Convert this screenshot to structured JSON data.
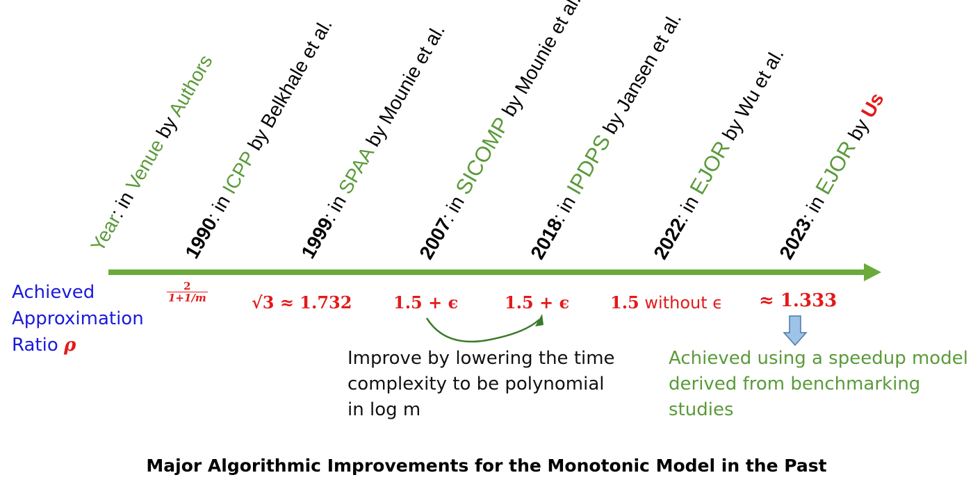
{
  "legend_entry": {
    "year": "Year",
    "sep": ": in ",
    "venue": "Venue",
    "by": " by ",
    "authors": "Authors"
  },
  "entries": [
    {
      "year": "1990",
      "venue": "ICPP",
      "authors": "Belkhale et al."
    },
    {
      "year": "1999",
      "venue": "SPAA",
      "authors": "Mounie et al."
    },
    {
      "year": "2007",
      "venue": "SICOMP",
      "authors": "Mounie et al."
    },
    {
      "year": "2018",
      "venue": "IPDPS",
      "authors": "Jansen et al."
    },
    {
      "year": "2022",
      "venue": "EJOR",
      "authors": "Wu et al."
    },
    {
      "year": "2023",
      "venue": "EJOR",
      "authors": "Us"
    }
  ],
  "separator_in": ": in ",
  "separator_by": " by ",
  "left_label": {
    "line1": "Achieved",
    "line2": "Approximation",
    "line3": "Ratio",
    "symbol": "ρ"
  },
  "ratios": {
    "r1990": {
      "numerator": "2",
      "denominator": "1+1/m"
    },
    "r1999": "√3 ≈ 1.732",
    "r2007": "1.5 + ϵ",
    "r2018": "1.5 + ϵ",
    "r2022": {
      "value": "1.5",
      "text": " without ϵ"
    },
    "r2023": "≈ 1.333"
  },
  "notes": {
    "improve": [
      "Improve by lowering the time",
      "complexity to be polynomial",
      "in log m"
    ],
    "achieved": [
      "Achieved using a speedup model",
      "derived from benchmarking",
      "studies"
    ]
  },
  "caption": "Major Algorithmic Improvements for the Monotonic Model in the Past",
  "colors": {
    "green": "#5a9a3a",
    "red": "#e31a1a",
    "blue": "#1a1adb",
    "arrow_blue": "#9dc3e6"
  }
}
